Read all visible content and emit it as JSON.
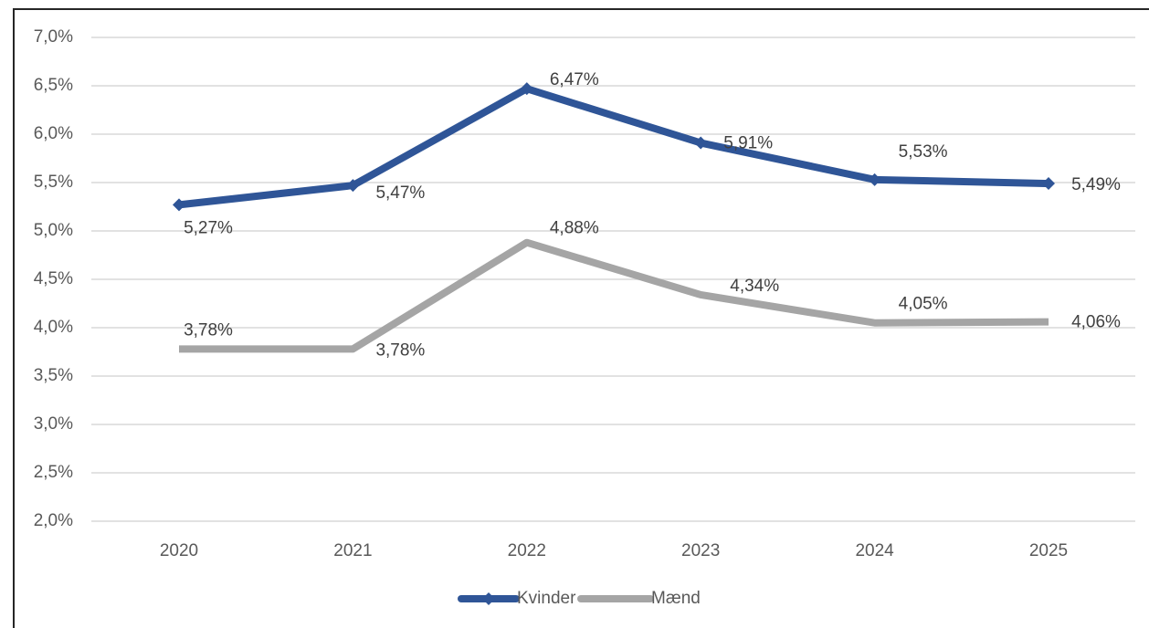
{
  "chart_data": {
    "type": "line",
    "x": [
      "2020",
      "2021",
      "2022",
      "2023",
      "2024",
      "2025"
    ],
    "series": [
      {
        "name": "Kvinder",
        "color": "#2f5597",
        "marker": "diamond",
        "values": [
          5.27,
          5.47,
          6.47,
          5.91,
          5.53,
          5.49
        ],
        "value_labels": [
          "5,27%",
          "5,47%",
          "6,47%",
          "5,91%",
          "5,53%",
          "5,49%"
        ]
      },
      {
        "name": "Mænd",
        "color": "#a5a5a5",
        "values": [
          3.78,
          3.78,
          4.88,
          4.34,
          4.05,
          4.06
        ],
        "value_labels": [
          "3,78%",
          "3,78%",
          "4,88%",
          "4,34%",
          "4,05%",
          "4,06%"
        ]
      }
    ],
    "ylim": [
      2,
      7
    ],
    "yticks": [
      {
        "value": 2,
        "label": "2,0%"
      },
      {
        "value": 2.5,
        "label": "2,5%"
      },
      {
        "value": 3,
        "label": "3,0%"
      },
      {
        "value": 3.5,
        "label": "3,5%"
      },
      {
        "value": 4,
        "label": "4,0%"
      },
      {
        "value": 4.5,
        "label": "4,5%"
      },
      {
        "value": 5,
        "label": "5,0%"
      },
      {
        "value": 5.5,
        "label": "5,5%"
      },
      {
        "value": 6,
        "label": "6,0%"
      },
      {
        "value": 6.5,
        "label": "6,5%"
      },
      {
        "value": 7,
        "label": "7,0%"
      }
    ],
    "grid": true,
    "legend": "bottom"
  }
}
